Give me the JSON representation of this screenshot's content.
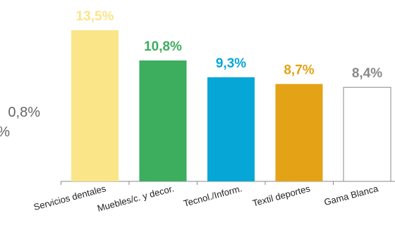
{
  "side_labels": [
    "0,8%",
    "%"
  ],
  "chart_data": {
    "type": "bar",
    "title": "",
    "xlabel": "",
    "ylabel": "",
    "categories": [
      "Servicios dentales",
      "Muebles/c. y decor.",
      "Tecnol./Inform.",
      "Textil deportes",
      "Gama Blanca"
    ],
    "values": [
      13.5,
      10.8,
      9.3,
      8.7,
      8.4
    ],
    "value_labels": [
      "13,5%",
      "10,8%",
      "9,3%",
      "8,7%",
      "8,4%"
    ],
    "colors": [
      "#FBE589",
      "#3DAD5E",
      "#06A7D7",
      "#E4A317",
      "#FFFFFF"
    ],
    "label_colors": [
      "#FBE589",
      "#3DAD5E",
      "#06A7D7",
      "#E4A317",
      "#888888"
    ],
    "ylim": [
      0,
      13.5
    ],
    "grid": false,
    "legend": "none"
  }
}
